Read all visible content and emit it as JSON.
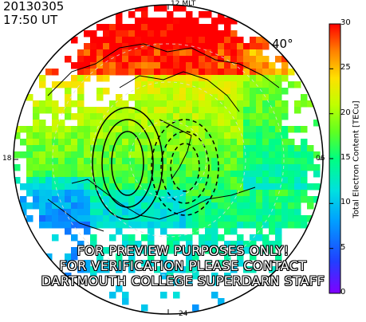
{
  "header": {
    "date": "20130305",
    "time": "17:50 UT"
  },
  "mlt_labels": {
    "top": "12 MLT",
    "left": "18",
    "right": "06",
    "bottom": "24"
  },
  "latitude_label": "40°",
  "watermark": [
    "FOR PREVIEW PURPOSES ONLY!",
    "FOR VERIFICATION PLEASE CONTACT",
    "DARTMOUTH COLLEGE SUPERDARN STAFF"
  ],
  "colorbar": {
    "title": "Total Electron Content [TECu]",
    "min": 0,
    "max": 30,
    "ticks": [
      "0",
      "5",
      "10",
      "15",
      "20",
      "25",
      "30"
    ],
    "colors": [
      "#8000ff",
      "#0040ff",
      "#00c0ff",
      "#00ffc0",
      "#40ff40",
      "#c0ff00",
      "#ffff00",
      "#ffa000",
      "#ff0000"
    ]
  },
  "map": {
    "projection": "polar",
    "land_outline": "black",
    "background_missing": "white",
    "convection_contours": "black"
  }
}
